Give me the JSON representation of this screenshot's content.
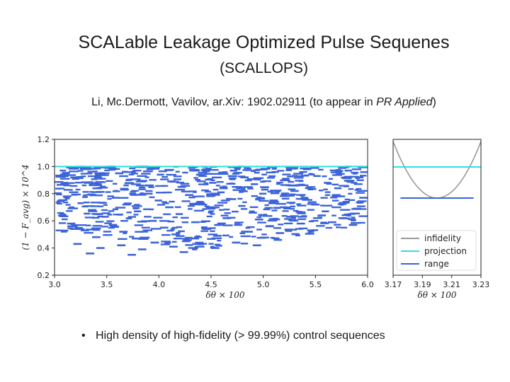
{
  "header": {
    "title": "SCALable Leakage Optimized Pulse Sequenes",
    "subtitle": "(SCALLOPS)",
    "citation_prefix": "Li, Mc.Dermott, Vavilov, ar.Xiv: 1902.02911 (to appear in ",
    "citation_journal": "PR Applied",
    "citation_suffix": ")"
  },
  "bullets": [
    {
      "marker": "•",
      "text": "High density of high-fidelity (> 99.99%) control sequences"
    }
  ],
  "colors": {
    "infidelity": "#999999",
    "projection": "#2ee0df",
    "range": "#3c64d8",
    "axis": "#222222"
  },
  "chart_data": [
    {
      "type": "scatter",
      "title": "",
      "xlabel": "δθ × 100",
      "ylabel": "(1 − F_avg) × 10^4",
      "xlim": [
        3.0,
        6.0
      ],
      "ylim": [
        0.2,
        1.2
      ],
      "xticks": [
        "3.0",
        "3.5",
        "4.0",
        "4.5",
        "5.0",
        "5.5",
        "6.0"
      ],
      "yticks": [
        "0.2",
        "0.4",
        "0.6",
        "0.8",
        "1.0",
        "1.2"
      ],
      "grid": false,
      "series": [
        {
          "name": "projection",
          "kind": "hline",
          "y": 1.0
        },
        {
          "name": "range",
          "kind": "segments",
          "description_density": "dense horizontal segments spanning x 3.0–6.0 and y 0.34–1.0, denser near the top",
          "segments": [
            [
              3.05,
              3.11,
              0.97
            ],
            [
              3.15,
              3.22,
              0.92
            ],
            [
              3.28,
              3.34,
              0.88
            ],
            [
              3.38,
              3.45,
              0.84
            ],
            [
              3.48,
              3.55,
              0.99
            ],
            [
              3.58,
              3.66,
              0.95
            ],
            [
              3.68,
              3.74,
              0.9
            ],
            [
              3.78,
              3.86,
              0.86
            ],
            [
              3.88,
              3.95,
              0.98
            ],
            [
              3.98,
              4.05,
              0.94
            ],
            [
              4.08,
              4.15,
              0.89
            ],
            [
              4.18,
              4.26,
              0.85
            ],
            [
              4.28,
              4.35,
              0.99
            ],
            [
              4.38,
              4.46,
              0.93
            ],
            [
              4.48,
              4.55,
              0.88
            ],
            [
              4.58,
              4.66,
              0.84
            ],
            [
              4.68,
              4.75,
              0.97
            ],
            [
              4.78,
              4.86,
              0.92
            ],
            [
              4.88,
              4.95,
              0.87
            ],
            [
              4.98,
              5.05,
              0.83
            ],
            [
              5.08,
              5.15,
              0.96
            ],
            [
              5.18,
              5.25,
              0.91
            ],
            [
              5.28,
              5.35,
              0.86
            ],
            [
              5.38,
              5.46,
              0.98
            ],
            [
              5.48,
              5.55,
              0.93
            ],
            [
              5.58,
              5.65,
              0.88
            ],
            [
              5.68,
              5.75,
              0.84
            ],
            [
              5.78,
              5.85,
              0.97
            ],
            [
              5.88,
              5.96,
              0.92
            ],
            [
              3.08,
              3.16,
              0.78
            ],
            [
              3.22,
              3.28,
              0.73
            ],
            [
              3.32,
              3.4,
              0.68
            ],
            [
              3.45,
              3.52,
              0.63
            ],
            [
              3.55,
              3.62,
              0.77
            ],
            [
              3.65,
              3.73,
              0.72
            ],
            [
              3.76,
              3.83,
              0.67
            ],
            [
              3.86,
              3.94,
              0.8
            ],
            [
              3.96,
              4.03,
              0.75
            ],
            [
              4.06,
              4.14,
              0.7
            ],
            [
              4.16,
              4.23,
              0.65
            ],
            [
              4.25,
              4.33,
              0.79
            ],
            [
              4.36,
              4.43,
              0.74
            ],
            [
              4.46,
              4.54,
              0.69
            ],
            [
              4.56,
              4.63,
              0.81
            ],
            [
              4.66,
              4.74,
              0.76
            ],
            [
              4.76,
              4.83,
              0.71
            ],
            [
              4.86,
              4.94,
              0.66
            ],
            [
              4.96,
              5.03,
              0.8
            ],
            [
              5.06,
              5.14,
              0.75
            ],
            [
              5.16,
              5.23,
              0.7
            ],
            [
              5.26,
              5.34,
              0.82
            ],
            [
              5.36,
              5.43,
              0.77
            ],
            [
              5.46,
              5.54,
              0.72
            ],
            [
              5.56,
              5.63,
              0.67
            ],
            [
              5.66,
              5.74,
              0.79
            ],
            [
              5.76,
              5.83,
              0.74
            ],
            [
              5.86,
              5.94,
              0.69
            ],
            [
              5.92,
              6.0,
              0.77
            ],
            [
              3.12,
              3.2,
              0.58
            ],
            [
              3.25,
              3.33,
              0.53
            ],
            [
              3.36,
              3.44,
              0.48
            ],
            [
              3.52,
              3.6,
              0.57
            ],
            [
              3.62,
              3.7,
              0.52
            ],
            [
              3.74,
              3.82,
              0.47
            ],
            [
              3.9,
              3.98,
              0.6
            ],
            [
              4.01,
              4.09,
              0.55
            ],
            [
              4.12,
              4.2,
              0.5
            ],
            [
              4.22,
              4.3,
              0.45
            ],
            [
              4.31,
              4.39,
              0.59
            ],
            [
              4.42,
              4.5,
              0.54
            ],
            [
              4.52,
              4.6,
              0.49
            ],
            [
              4.61,
              4.69,
              0.62
            ],
            [
              4.72,
              4.8,
              0.57
            ],
            [
              4.82,
              4.9,
              0.52
            ],
            [
              4.92,
              5.0,
              0.61
            ],
            [
              5.02,
              5.1,
              0.56
            ],
            [
              5.12,
              5.2,
              0.51
            ],
            [
              5.22,
              5.3,
              0.63
            ],
            [
              5.32,
              5.4,
              0.58
            ],
            [
              5.42,
              5.5,
              0.53
            ],
            [
              5.52,
              5.6,
              0.64
            ],
            [
              5.62,
              5.7,
              0.59
            ],
            [
              5.72,
              5.8,
              0.62
            ],
            [
              5.82,
              5.9,
              0.57
            ],
            [
              3.18,
              3.26,
              0.43
            ],
            [
              3.4,
              3.48,
              0.4
            ],
            [
              3.6,
              3.68,
              0.42
            ],
            [
              3.8,
              3.88,
              0.39
            ],
            [
              3.92,
              4.0,
              0.44
            ],
            [
              4.1,
              4.18,
              0.41
            ],
            [
              4.32,
              4.4,
              0.43
            ],
            [
              4.5,
              4.58,
              0.4
            ],
            [
              4.7,
              4.78,
              0.44
            ],
            [
              4.9,
              4.98,
              0.42
            ],
            [
              5.1,
              5.18,
              0.46
            ],
            [
              3.3,
              3.38,
              0.36
            ],
            [
              3.7,
              3.78,
              0.35
            ],
            [
              4.2,
              4.28,
              0.37
            ]
          ]
        }
      ]
    },
    {
      "type": "line",
      "title": "",
      "xlabel": "δθ × 100",
      "ylabel": "",
      "xlim": [
        3.17,
        3.23
      ],
      "xticks": [
        "3.17",
        "3.19",
        "3.21",
        "3.23"
      ],
      "grid": false,
      "legend_position": "lower-center",
      "series": [
        {
          "name": "infidelity",
          "kind": "parabola",
          "vertex_x": 3.2,
          "vertex_y_rel": 0.0,
          "edge_y_rel": 1.0
        },
        {
          "name": "projection",
          "kind": "hline",
          "y_rel": 0.55
        },
        {
          "name": "range",
          "kind": "segment",
          "x": [
            3.175,
            3.225
          ],
          "y_rel": 0.0
        }
      ],
      "legend": [
        "infidelity",
        "projection",
        "range"
      ]
    }
  ]
}
